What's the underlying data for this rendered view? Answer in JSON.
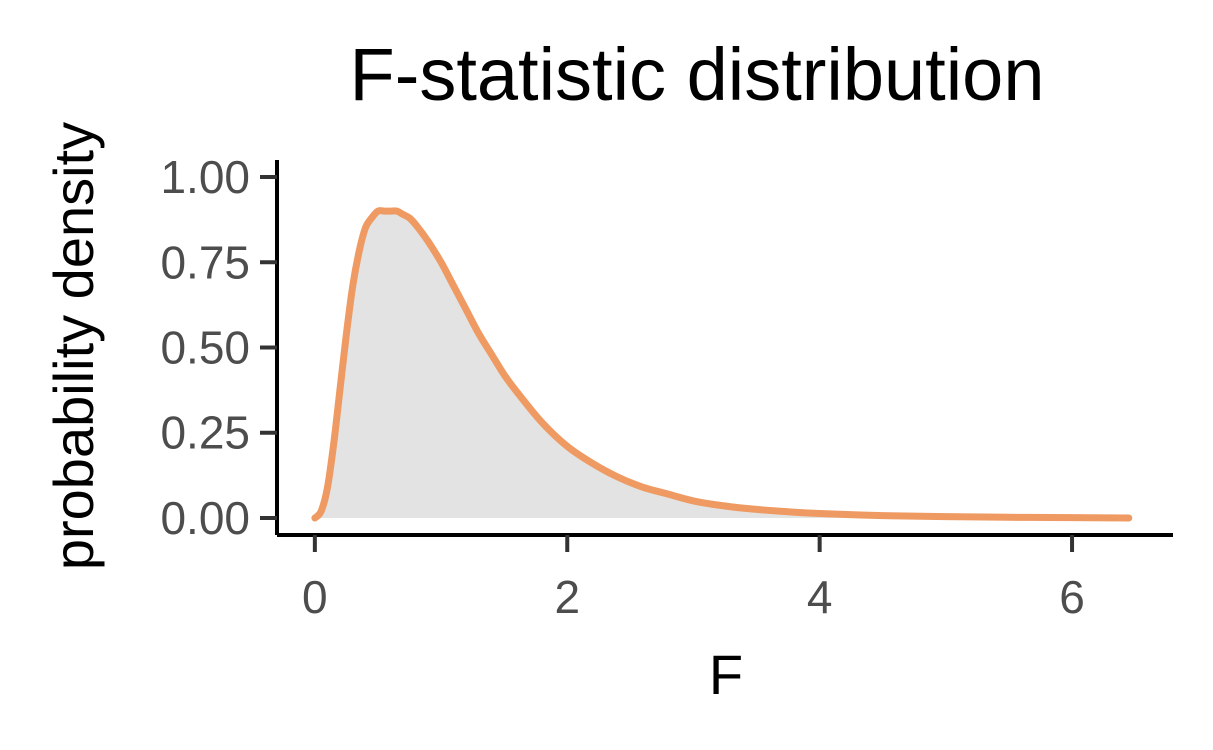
{
  "chart_data": {
    "type": "area",
    "title": "F-statistic distribution",
    "xlabel": "F",
    "ylabel": "probability density",
    "xlim": [
      -0.3,
      6.8
    ],
    "ylim": [
      -0.05,
      1.05
    ],
    "x_ticks": [
      0,
      2,
      4,
      6
    ],
    "y_ticks": [
      0.0,
      0.25,
      0.5,
      0.75,
      1.0
    ],
    "x_tick_labels": [
      "0",
      "2",
      "4",
      "6"
    ],
    "y_tick_labels": [
      "0.00",
      "0.25",
      "0.50",
      "0.75",
      "1.00"
    ],
    "grid": false,
    "legend": "none",
    "series": [
      {
        "x": [
          0.0,
          0.05,
          0.1,
          0.15,
          0.2,
          0.25,
          0.3,
          0.35,
          0.4,
          0.45,
          0.5,
          0.55,
          0.6,
          0.65,
          0.7,
          0.75,
          0.8,
          0.9,
          1.0,
          1.1,
          1.2,
          1.3,
          1.4,
          1.5,
          1.6,
          1.8,
          2.0,
          2.2,
          2.4,
          2.6,
          2.8,
          3.0,
          3.25,
          3.5,
          3.75,
          4.0,
          4.5,
          5.0,
          5.5,
          6.0,
          6.45
        ],
        "y": [
          0.0,
          0.02,
          0.09,
          0.22,
          0.38,
          0.54,
          0.68,
          0.78,
          0.85,
          0.88,
          0.9,
          0.9,
          0.9,
          0.9,
          0.89,
          0.88,
          0.86,
          0.81,
          0.75,
          0.68,
          0.61,
          0.54,
          0.48,
          0.42,
          0.37,
          0.28,
          0.21,
          0.16,
          0.12,
          0.09,
          0.07,
          0.05,
          0.035,
          0.025,
          0.018,
          0.013,
          0.007,
          0.004,
          0.002,
          0.001,
          0.0
        ],
        "line_color": "#EE9A62",
        "fill_color": "#E3E3E3"
      }
    ]
  }
}
